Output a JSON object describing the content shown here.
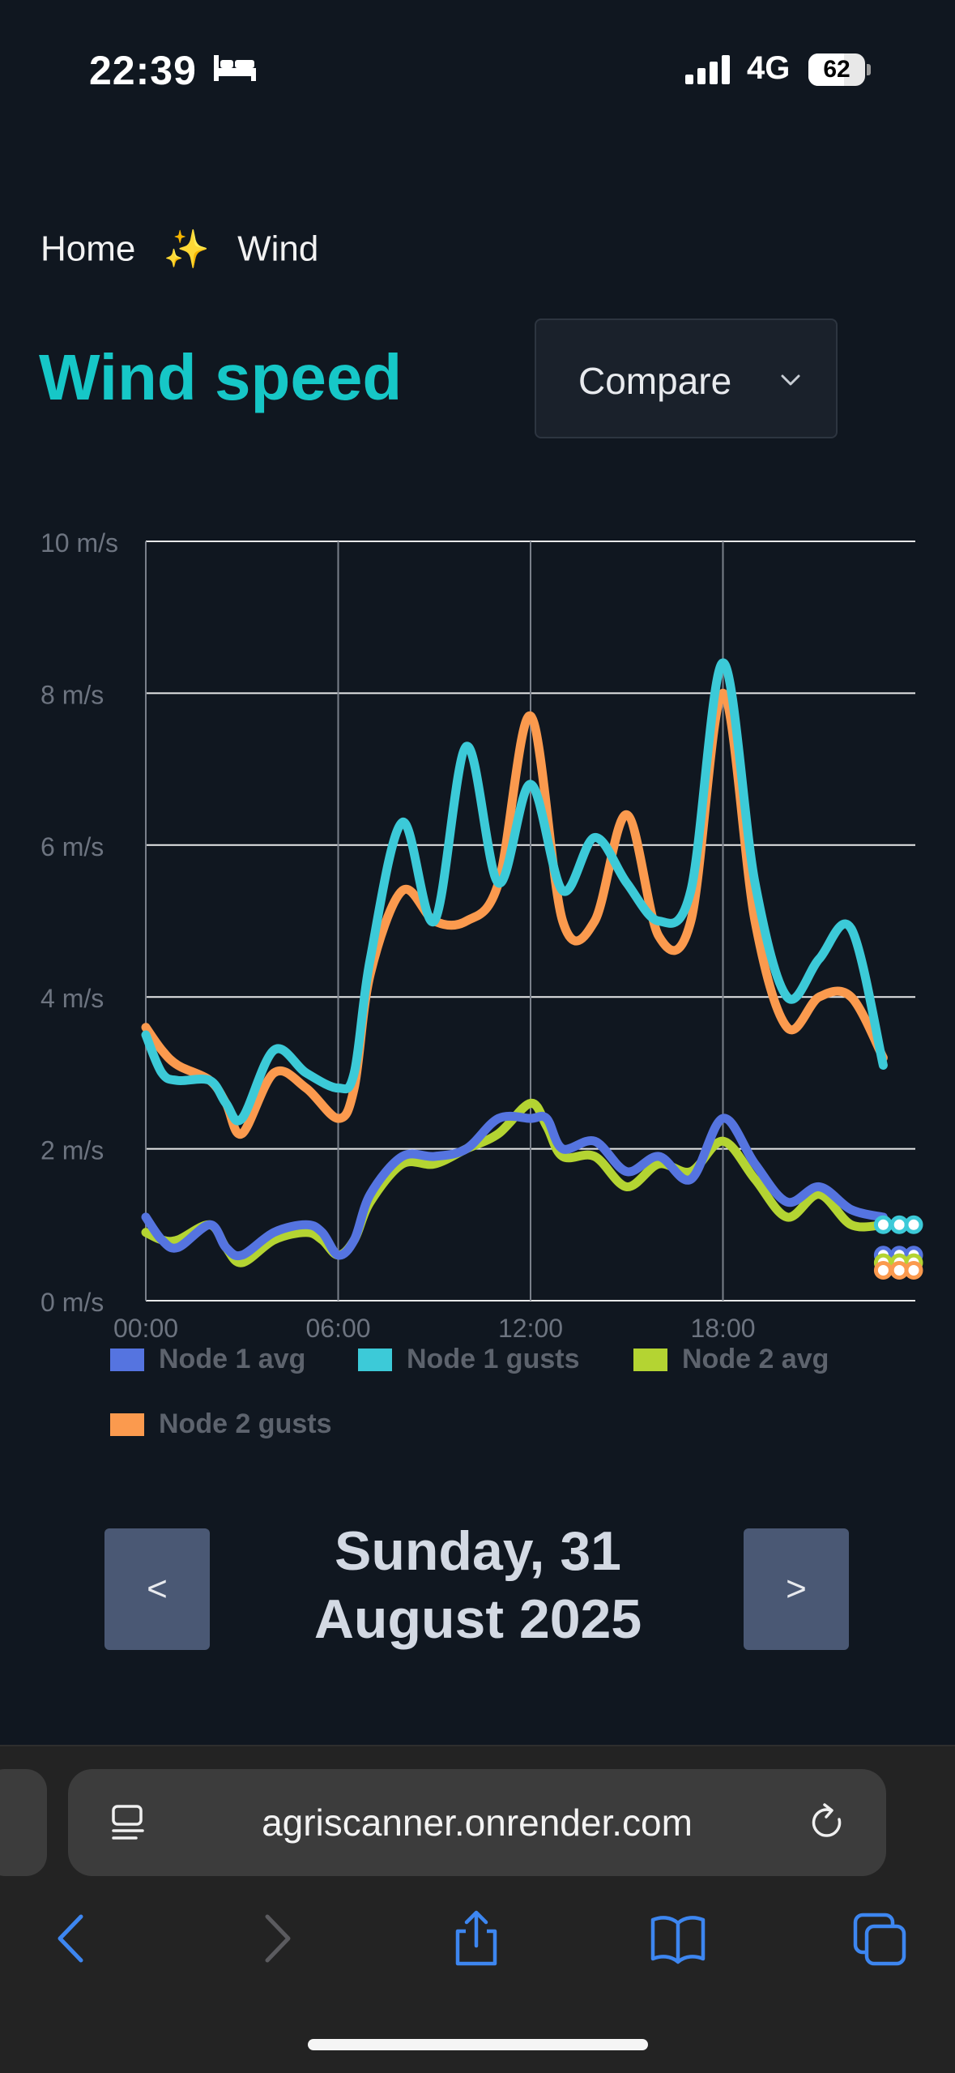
{
  "status_bar": {
    "time": "22:39",
    "network": "4G",
    "battery": "62"
  },
  "breadcrumb": {
    "home": "Home",
    "separator": "✨",
    "current": "Wind"
  },
  "page": {
    "title": "Wind speed",
    "compare_label": "Compare"
  },
  "chart_data": {
    "type": "line",
    "title": "",
    "xlabel": "",
    "ylabel": "",
    "x_unit": "hour",
    "xlim": [
      0,
      24
    ],
    "ylim": [
      0,
      10
    ],
    "y_ticks": [
      0,
      2,
      4,
      6,
      8,
      10
    ],
    "y_tick_labels": [
      "0 m/s",
      "2 m/s",
      "4 m/s",
      "6 m/s",
      "8 m/s",
      "10 m/s"
    ],
    "x_ticks": [
      0,
      6,
      12,
      18
    ],
    "x_tick_labels": [
      "00:00",
      "06:00",
      "12:00",
      "18:00"
    ],
    "grid": true,
    "legend_position": "bottom",
    "series": [
      {
        "name": "Node 1 avg",
        "color": "#5574e0",
        "points": [
          [
            0,
            1.1
          ],
          [
            0.5,
            0.8
          ],
          [
            1,
            0.7
          ],
          [
            2,
            1.0
          ],
          [
            2.5,
            0.7
          ],
          [
            3,
            0.6
          ],
          [
            4,
            0.9
          ],
          [
            5,
            1.0
          ],
          [
            5.5,
            0.9
          ],
          [
            6,
            0.6
          ],
          [
            6.5,
            0.8
          ],
          [
            7,
            1.4
          ],
          [
            8,
            1.9
          ],
          [
            9,
            1.9
          ],
          [
            10,
            2.0
          ],
          [
            11,
            2.4
          ],
          [
            12,
            2.4
          ],
          [
            12.5,
            2.4
          ],
          [
            13,
            2.0
          ],
          [
            14,
            2.1
          ],
          [
            15,
            1.7
          ],
          [
            16,
            1.9
          ],
          [
            17,
            1.6
          ],
          [
            18,
            2.4
          ],
          [
            19,
            1.8
          ],
          [
            20,
            1.3
          ],
          [
            21,
            1.5
          ],
          [
            22,
            1.2
          ],
          [
            23,
            1.1
          ]
        ]
      },
      {
        "name": "Node 1 gusts",
        "color": "#3ccad8",
        "points": [
          [
            0,
            3.5
          ],
          [
            0.5,
            3.0
          ],
          [
            1,
            2.9
          ],
          [
            2,
            2.9
          ],
          [
            2.5,
            2.6
          ],
          [
            3,
            2.4
          ],
          [
            4,
            3.3
          ],
          [
            5,
            3.0
          ],
          [
            6,
            2.8
          ],
          [
            6.5,
            3.0
          ],
          [
            7,
            4.5
          ],
          [
            8,
            6.3
          ],
          [
            9,
            5.0
          ],
          [
            10,
            7.3
          ],
          [
            11,
            5.5
          ],
          [
            12,
            6.8
          ],
          [
            13,
            5.4
          ],
          [
            14,
            6.1
          ],
          [
            15,
            5.5
          ],
          [
            16,
            5.0
          ],
          [
            17,
            5.4
          ],
          [
            18,
            8.4
          ],
          [
            19,
            5.5
          ],
          [
            20,
            4.0
          ],
          [
            21,
            4.5
          ],
          [
            22,
            4.9
          ],
          [
            23,
            3.1
          ]
        ]
      },
      {
        "name": "Node 2 avg",
        "color": "#b4d432",
        "points": [
          [
            0,
            0.9
          ],
          [
            0.5,
            0.8
          ],
          [
            1,
            0.8
          ],
          [
            2,
            1.0
          ],
          [
            2.5,
            0.7
          ],
          [
            3,
            0.5
          ],
          [
            4,
            0.8
          ],
          [
            5,
            0.9
          ],
          [
            5.5,
            0.8
          ],
          [
            6,
            0.6
          ],
          [
            6.5,
            0.8
          ],
          [
            7,
            1.3
          ],
          [
            8,
            1.8
          ],
          [
            9,
            1.8
          ],
          [
            10,
            2.0
          ],
          [
            11,
            2.2
          ],
          [
            12,
            2.6
          ],
          [
            12.5,
            2.3
          ],
          [
            13,
            1.9
          ],
          [
            14,
            1.9
          ],
          [
            15,
            1.5
          ],
          [
            16,
            1.8
          ],
          [
            17,
            1.7
          ],
          [
            18,
            2.1
          ],
          [
            19,
            1.6
          ],
          [
            20,
            1.1
          ],
          [
            21,
            1.4
          ],
          [
            22,
            1.0
          ],
          [
            23,
            1.0
          ]
        ]
      },
      {
        "name": "Node 2 gusts",
        "color": "#fb9a4e",
        "points": [
          [
            0,
            3.6
          ],
          [
            0.5,
            3.3
          ],
          [
            1,
            3.1
          ],
          [
            2,
            2.9
          ],
          [
            2.5,
            2.6
          ],
          [
            3,
            2.2
          ],
          [
            4,
            3.0
          ],
          [
            5,
            2.8
          ],
          [
            6,
            2.4
          ],
          [
            6.5,
            2.8
          ],
          [
            7,
            4.3
          ],
          [
            8,
            5.4
          ],
          [
            9,
            5.0
          ],
          [
            10,
            5.0
          ],
          [
            11,
            5.5
          ],
          [
            12,
            7.7
          ],
          [
            13,
            5.0
          ],
          [
            14,
            5.0
          ],
          [
            15,
            6.4
          ],
          [
            16,
            4.8
          ],
          [
            17,
            5.0
          ],
          [
            18,
            8.0
          ],
          [
            19,
            5.0
          ],
          [
            20,
            3.6
          ],
          [
            21,
            4.0
          ],
          [
            22,
            4.0
          ],
          [
            23,
            3.2
          ]
        ]
      }
    ],
    "end_markers": [
      {
        "series": "Node 1 gusts",
        "x": [
          23,
          24
        ],
        "y": 1.0
      },
      {
        "series": "Node 1 avg",
        "x": [
          23,
          24
        ],
        "y": 0.6
      },
      {
        "series": "Node 2 avg",
        "x": [
          23,
          24
        ],
        "y": 0.5
      },
      {
        "series": "Node 2 gusts",
        "x": [
          23,
          24
        ],
        "y": 0.4
      }
    ]
  },
  "navigation": {
    "prev_label": "<",
    "next_label": ">",
    "date_line1": "Sunday, 31",
    "date_line2": "August 2025"
  },
  "browser": {
    "url": "agriscanner.onrender.com"
  },
  "colors": {
    "background": "#101720",
    "title": "#16c7c7",
    "pager": "#4a5874",
    "grid": "#ffffff",
    "ios_blue": "#3d86f0"
  }
}
